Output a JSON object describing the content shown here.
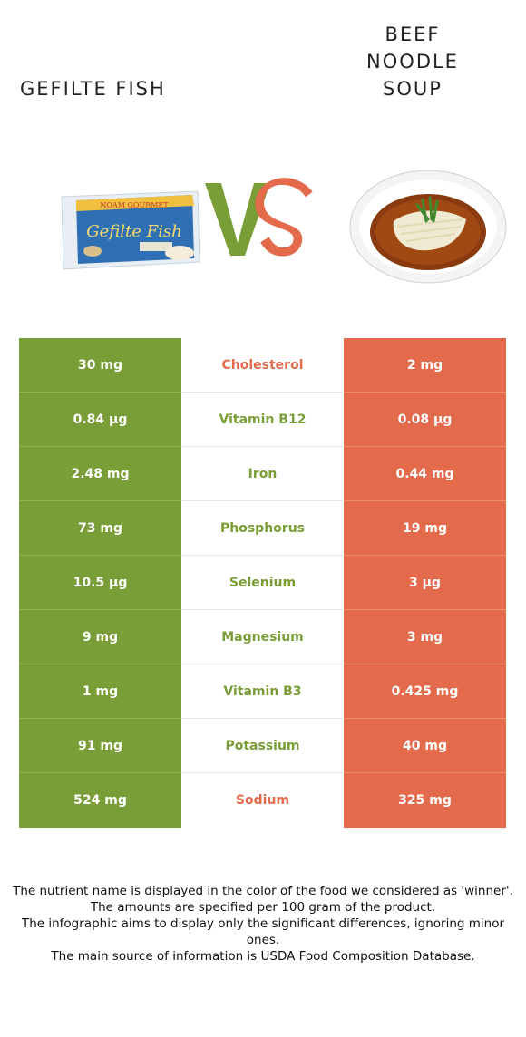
{
  "left_food": {
    "title": "Gefilte fish",
    "image": "gefilte-fish-package-image"
  },
  "right_food": {
    "title": "Beef\nnoodle\nsoup",
    "image": "beef-noodle-soup-bowl-image"
  },
  "vs_text": "VS",
  "colors": {
    "left": "#7a9e37",
    "right": "#e46a4c"
  },
  "rows": [
    {
      "left": "30 mg",
      "name": "Cholesterol",
      "right": "2 mg",
      "winner": "right"
    },
    {
      "left": "0.84 µg",
      "name": "Vitamin B12",
      "right": "0.08 µg",
      "winner": "left"
    },
    {
      "left": "2.48 mg",
      "name": "Iron",
      "right": "0.44 mg",
      "winner": "left"
    },
    {
      "left": "73 mg",
      "name": "Phosphorus",
      "right": "19 mg",
      "winner": "left"
    },
    {
      "left": "10.5 µg",
      "name": "Selenium",
      "right": "3 µg",
      "winner": "left"
    },
    {
      "left": "9 mg",
      "name": "Magnesium",
      "right": "3 mg",
      "winner": "left"
    },
    {
      "left": "1 mg",
      "name": "Vitamin B3",
      "right": "0.425 mg",
      "winner": "left"
    },
    {
      "left": "91 mg",
      "name": "Potassium",
      "right": "40 mg",
      "winner": "left"
    },
    {
      "left": "524 mg",
      "name": "Sodium",
      "right": "325 mg",
      "winner": "right"
    }
  ],
  "footer": {
    "line1": "The nutrient name is displayed in the color of the food we considered as 'winner'.",
    "line2": "The amounts are specified per 100 gram of the product.",
    "line3": "The infographic aims to display only the significant differences, ignoring minor ones.",
    "line4": "The main source of information is USDA Food Composition Database."
  }
}
